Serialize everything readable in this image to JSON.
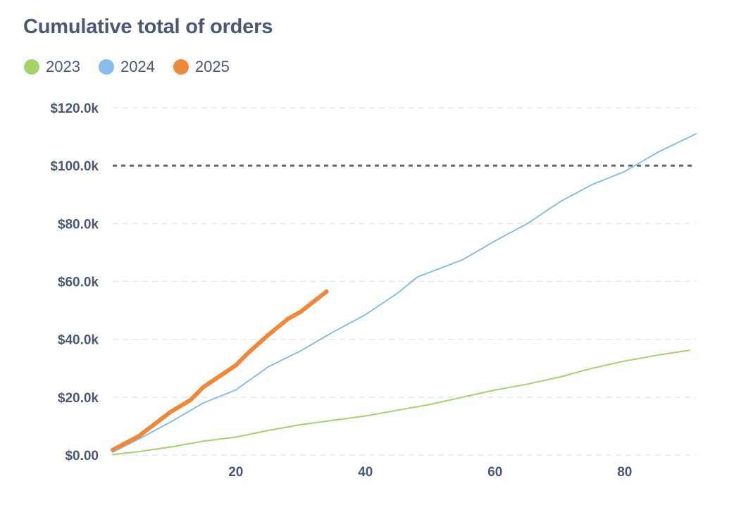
{
  "chart_data": {
    "type": "line",
    "title": "Cumulative total of orders",
    "xlabel": "",
    "ylabel": "",
    "xlim": [
      1,
      91
    ],
    "ylim": [
      0,
      120000
    ],
    "yticks": [
      {
        "value": 0,
        "label": "$0.00"
      },
      {
        "value": 20000,
        "label": "$20.0k"
      },
      {
        "value": 40000,
        "label": "$40.0k"
      },
      {
        "value": 60000,
        "label": "$60.0k"
      },
      {
        "value": 80000,
        "label": "$80.0k"
      },
      {
        "value": 100000,
        "label": "$100.0k"
      },
      {
        "value": 120000,
        "label": "$120.0k"
      }
    ],
    "xticks": [
      {
        "value": 20,
        "label": "20"
      },
      {
        "value": 40,
        "label": "40"
      },
      {
        "value": 60,
        "label": "60"
      },
      {
        "value": 80,
        "label": "80"
      }
    ],
    "goal_line": 100000,
    "grid": true,
    "legend_position": "top-left",
    "series": [
      {
        "name": "2023",
        "color": "#a6d26c",
        "x": [
          1,
          5,
          10,
          15,
          20,
          25,
          30,
          35,
          40,
          45,
          50,
          55,
          60,
          65,
          70,
          75,
          80,
          85,
          90
        ],
        "y": [
          200,
          1200,
          2800,
          4800,
          6200,
          8500,
          10500,
          12000,
          13500,
          15500,
          17500,
          20000,
          22500,
          24500,
          27000,
          30000,
          32500,
          34500,
          36200
        ]
      },
      {
        "name": "2024",
        "color": "#88bdea",
        "x": [
          1,
          5,
          10,
          15,
          20,
          25,
          30,
          35,
          40,
          45,
          48,
          55,
          60,
          65,
          70,
          75,
          80,
          85,
          91
        ],
        "y": [
          1000,
          5500,
          11500,
          18000,
          22500,
          30500,
          36000,
          42500,
          48500,
          56000,
          61500,
          67500,
          74000,
          80000,
          87500,
          93500,
          98000,
          104500,
          111000
        ]
      },
      {
        "name": "2025",
        "color": "#f0883b",
        "x": [
          1,
          5,
          10,
          13,
          15,
          20,
          22,
          25,
          28,
          30,
          34
        ],
        "y": [
          1800,
          6500,
          15000,
          19000,
          23500,
          31000,
          35500,
          41500,
          47000,
          49500,
          56500
        ]
      }
    ]
  }
}
